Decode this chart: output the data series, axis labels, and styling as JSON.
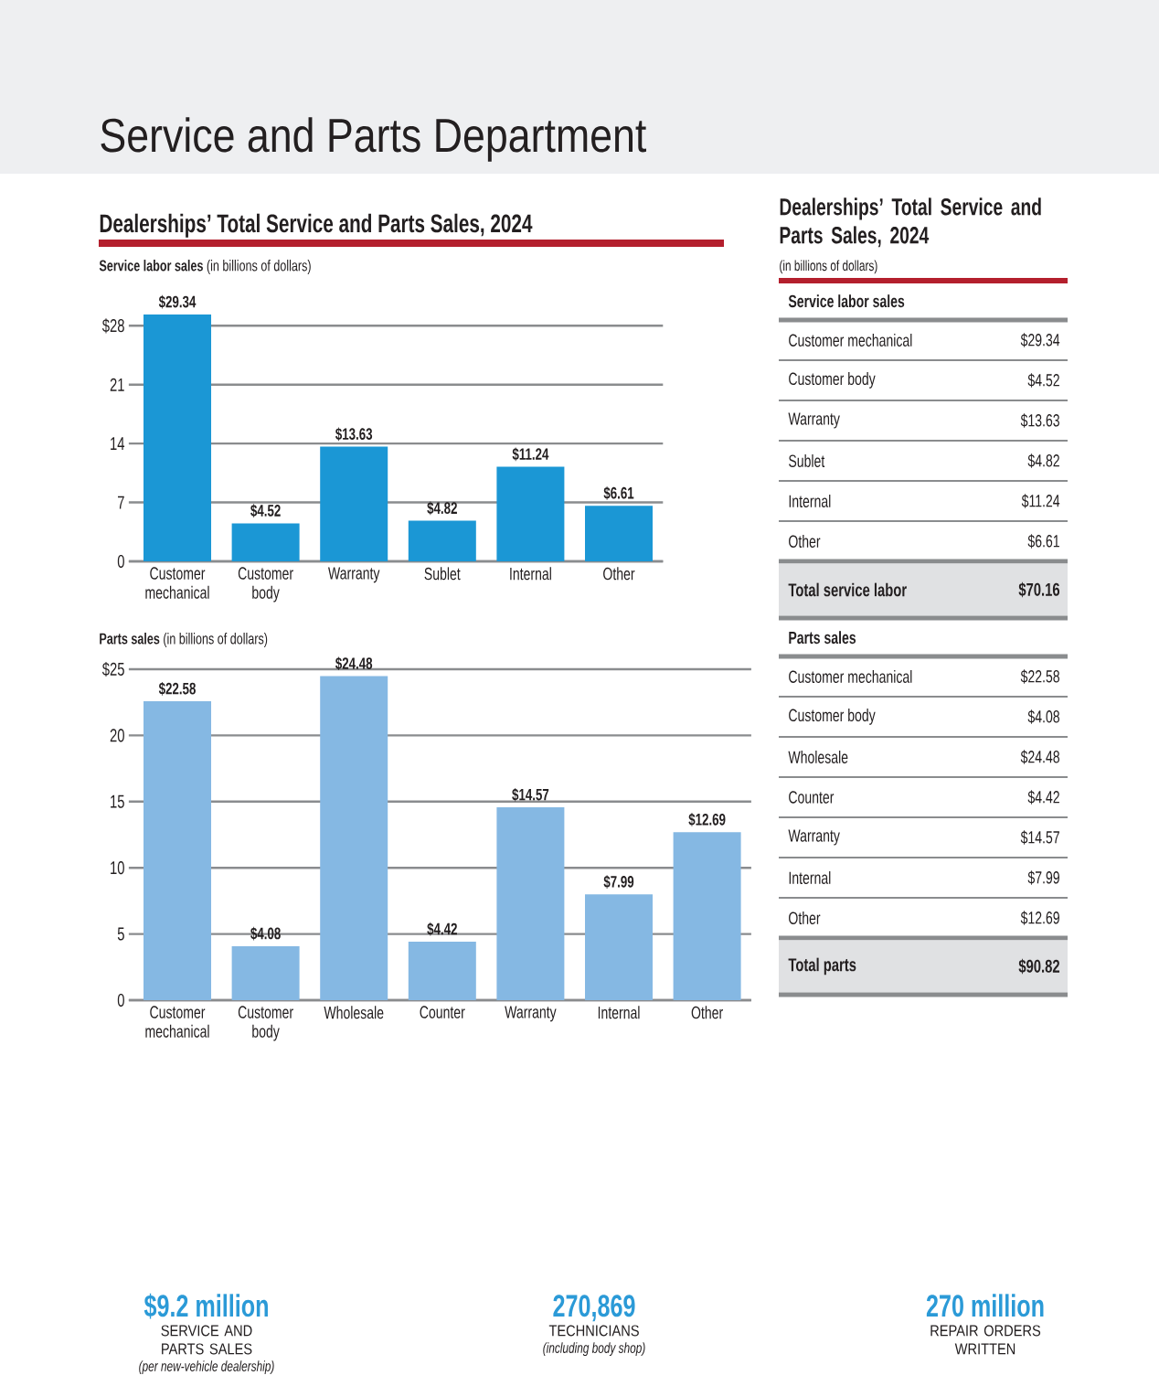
{
  "chart_data": [
    {
      "type": "bar",
      "title": "Service and Parts Department",
      "subtitle": "Dealerships’ Total Service and Parts Sales, 2024",
      "ylabel": "**Service labor sales** (in billions of dollars)",
      "categories": [
        "Customer mechanical",
        "Customer body",
        "Warranty",
        "Sublet",
        "Internal",
        "Other"
      ],
      "values": [
        29.34,
        4.52,
        13.63,
        4.82,
        11.24,
        6.61
      ],
      "value_labels": [
        "$29.34",
        "$4.52",
        "$13.63",
        "$4.82",
        "$11.24",
        "$6.61"
      ],
      "color": "#1b97d5",
      "ylim": [
        0,
        29.34
      ],
      "yticks": [
        0,
        7,
        14,
        21,
        {
          "value": 28,
          "label": "$28"
        }
      ],
      "grid": "y"
    },
    {
      "type": "bar",
      "ylabel": "**Parts sales** (in billions of dollars)",
      "categories": [
        "Customer mechanical",
        "Customer body",
        "Wholesale",
        "Counter",
        "Warranty",
        "Internal",
        "Other"
      ],
      "values": [
        22.58,
        4.08,
        24.48,
        4.42,
        14.57,
        7.99,
        12.69
      ],
      "value_labels": [
        "$22.58",
        "$4.08",
        "$24.48",
        "$4.42",
        "$14.57",
        "$7.99",
        "$12.69"
      ],
      "color": "#85b8e3",
      "ylim": [
        0,
        25
      ],
      "yticks": [
        0,
        5,
        10,
        15,
        20,
        {
          "value": 25,
          "label": "$25"
        }
      ],
      "grid": "y"
    },
    {
      "type": "other",
      "title": "Dealerships’ Total Service and Parts Sales, 2024",
      "subtitle": "(in billions of dollars)",
      "annotations": [
        "Service labor sales"
      ],
      "categories": [
        "Customer mechanical",
        "Customer body",
        "Warranty",
        "Sublet",
        "Internal",
        "Other",
        "Total service labor"
      ],
      "value_labels": [
        "$29.34",
        "$4.52",
        "$13.63",
        "$4.82",
        "$11.24",
        "$6.61",
        "$70.16"
      ]
    },
    {
      "type": "other",
      "annotations": [
        "Parts sales"
      ],
      "categories": [
        "Customer mechanical",
        "Customer body",
        "Wholesale",
        "Counter",
        "Warranty",
        "Internal",
        "Other",
        "Total parts"
      ],
      "value_labels": [
        "$22.58",
        "$4.08",
        "$24.48",
        "$4.42",
        "$14.57",
        "$7.99",
        "$12.69",
        "$90.82"
      ]
    },
    {
      "type": "other",
      "title": "$9.2 million",
      "subtitle": "SERVICE AND PARTS SALES",
      "annotations": [
        "(per new-vehicle dealership)"
      ]
    },
    {
      "type": "other",
      "title": "270,869",
      "subtitle": "TECHNICIANS",
      "annotations": [
        "(including body shop)"
      ]
    },
    {
      "type": "other",
      "title": "270 million",
      "subtitle": "REPAIR ORDERS WRITTEN"
    }
  ]
}
